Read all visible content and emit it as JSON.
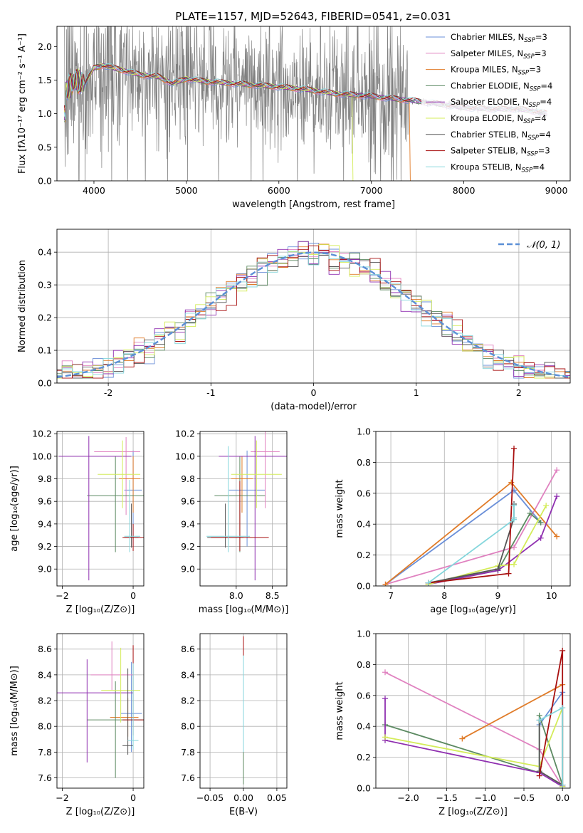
{
  "title": "PLATE=1157, MJD=52643, FIBERID=0541, z=0.031",
  "colors": {
    "Chabrier MILES": "#6a8fd8",
    "Salpeter MILES": "#e082c0",
    "Kroupa MILES": "#e07b28",
    "Chabrier ELODIE": "#5c8a62",
    "Salpeter ELODIE": "#8f2fb0",
    "Kroupa ELODIE": "#d4ec5a",
    "Chabrier STELIB": "#555555",
    "Salpeter STELIB": "#a81010",
    "Kroupa STELIB": "#84d6dc",
    "data": "#808080",
    "gauss": "#5b8fd6"
  },
  "chart_data": [
    {
      "id": "spectrum",
      "type": "line",
      "xlabel": "wavelength [Angstrom, rest frame]",
      "ylabel": "Flux [fλ10⁻¹⁷ erg cm⁻² s⁻¹ A⁻¹]",
      "xlim": [
        3600,
        9150
      ],
      "ylim": [
        0,
        2.3
      ],
      "xticks": [
        4000,
        5000,
        6000,
        7000,
        8000,
        9000
      ],
      "yticks": [
        0.0,
        0.5,
        1.0,
        1.5,
        2.0
      ],
      "grid": false,
      "legend_position": "top-right",
      "legend": [
        {
          "name": "Chabrier MILES",
          "base": "Chabrier MILES, N",
          "sub": "SSP",
          "val": "=3"
        },
        {
          "name": "Salpeter MILES",
          "base": "Salpeter MILES, N",
          "sub": "SSP",
          "val": "=3"
        },
        {
          "name": "Kroupa MILES",
          "base": "Kroupa MILES, N",
          "sub": "SSP",
          "val": "=3"
        },
        {
          "name": "Chabrier ELODIE",
          "base": "Chabrier ELODIE, N",
          "sub": "SSP",
          "val": "=4"
        },
        {
          "name": "Salpeter ELODIE",
          "base": "Salpeter ELODIE, N",
          "sub": "SSP",
          "val": "=4"
        },
        {
          "name": "Kroupa ELODIE",
          "base": "Kroupa ELODIE, N",
          "sub": "SSP",
          "val": "=4"
        },
        {
          "name": "Chabrier STELIB",
          "base": "Chabrier STELIB, N",
          "sub": "SSP",
          "val": "=4"
        },
        {
          "name": "Salpeter STELIB",
          "base": "Salpeter STELIB, N",
          "sub": "SSP",
          "val": "=3"
        },
        {
          "name": "Kroupa STELIB",
          "base": "Kroupa STELIB, N",
          "sub": "SSP",
          "val": "=4"
        }
      ],
      "continuum": [
        [
          3700,
          1.35
        ],
        [
          3800,
          1.5
        ],
        [
          3900,
          1.45
        ],
        [
          4000,
          1.68
        ],
        [
          4100,
          1.72
        ],
        [
          4300,
          1.65
        ],
        [
          4500,
          1.58
        ],
        [
          4700,
          1.55
        ],
        [
          4850,
          1.45
        ],
        [
          5000,
          1.52
        ],
        [
          5200,
          1.48
        ],
        [
          5500,
          1.45
        ],
        [
          5800,
          1.42
        ],
        [
          6000,
          1.4
        ],
        [
          6300,
          1.36
        ],
        [
          6600,
          1.3
        ],
        [
          7000,
          1.26
        ],
        [
          7400,
          1.2
        ],
        [
          7700,
          1.15
        ],
        [
          8000,
          1.09
        ],
        [
          8300,
          1.07
        ],
        [
          8600,
          1.07
        ],
        [
          8900,
          1.0
        ]
      ],
      "noisy_data_range": [
        3680,
        7400
      ],
      "model_dropouts": {
        "Kroupa ELODIE": 6800,
        "Kroupa MILES": 7420
      }
    },
    {
      "id": "residuals",
      "type": "histogram",
      "xlabel": "(data-model)/error",
      "ylabel": "Normed distribution",
      "xlim": [
        -2.5,
        2.5
      ],
      "ylim": [
        0,
        0.47
      ],
      "xticks": [
        -2,
        -1,
        0,
        1,
        2
      ],
      "yticks": [
        0.0,
        0.1,
        0.2,
        0.3,
        0.4
      ],
      "grid": true,
      "legend_position": "top-right",
      "gauss_label": "𝒩(0, 1)",
      "bin_width": 0.1
    },
    {
      "id": "age_vs_Z",
      "type": "errorbar",
      "xlabel": "Z [log₁₀(Z/Z⊙)]",
      "ylabel": "age  [log₁₀(age/yr)]",
      "xlim": [
        -2.15,
        0.3
      ],
      "ylim": [
        8.85,
        10.22
      ],
      "xticks": [
        -2,
        0
      ],
      "yticks": [
        9.0,
        9.2,
        9.4,
        9.6,
        9.8,
        10.0,
        10.2
      ],
      "grid": true,
      "points": [
        {
          "name": "Chabrier MILES",
          "x": 0.0,
          "y": 9.7,
          "xerr": [
            0.25,
            0.25
          ],
          "yerr": [
            0.5,
            0.35
          ]
        },
        {
          "name": "Salpeter MILES",
          "x": -0.2,
          "y": 10.04,
          "xerr": [
            0.9,
            0.4
          ],
          "yerr": [
            0.56,
            0.13
          ]
        },
        {
          "name": "Kroupa MILES",
          "x": 0.0,
          "y": 9.8,
          "xerr": [
            0.4,
            0.2
          ],
          "yerr": [
            0.3,
            0.2
          ]
        },
        {
          "name": "Chabrier ELODIE",
          "x": -0.5,
          "y": 9.65,
          "xerr": [
            0.8,
            0.8
          ],
          "yerr": [
            0.5,
            0.35
          ]
        },
        {
          "name": "Salpeter ELODIE",
          "x": -1.25,
          "y": 10.0,
          "xerr": [
            0.85,
            1.2
          ],
          "yerr": [
            1.1,
            0.18
          ]
        },
        {
          "name": "Kroupa ELODIE",
          "x": -0.3,
          "y": 9.84,
          "xerr": [
            0.7,
            0.5
          ],
          "yerr": [
            0.3,
            0.3
          ]
        },
        {
          "name": "Chabrier STELIB",
          "x": -0.05,
          "y": 9.28,
          "xerr": [
            0.2,
            0.2
          ],
          "yerr": [
            0.09,
            0.3
          ]
        },
        {
          "name": "Salpeter STELIB",
          "x": 0.0,
          "y": 9.28,
          "xerr": [
            0.3,
            0.3
          ],
          "yerr": [
            0.12,
            0.12
          ]
        },
        {
          "name": "Kroupa STELIB",
          "x": -0.1,
          "y": 9.29,
          "xerr": [
            0.15,
            0.3
          ],
          "yerr": [
            0.14,
            0.5
          ]
        }
      ]
    },
    {
      "id": "age_vs_mass",
      "type": "errorbar",
      "xlabel": "mass [log₁₀(M/M⊙)]",
      "ylabel": "",
      "xlim": [
        7.5,
        8.7
      ],
      "ylim": [
        8.85,
        10.22
      ],
      "xticks": [
        8.0,
        8.5
      ],
      "yticks": [
        9.0,
        9.2,
        9.4,
        9.6,
        9.8,
        10.0,
        10.2
      ],
      "grid": true,
      "points": [
        {
          "name": "Chabrier MILES",
          "x": 8.15,
          "y": 9.7,
          "xerr": [
            0.25,
            0.25
          ],
          "yerr": [
            0.5,
            0.35
          ]
        },
        {
          "name": "Salpeter MILES",
          "x": 8.4,
          "y": 10.04,
          "xerr": [
            0.2,
            0.2
          ],
          "yerr": [
            0.5,
            0.18
          ]
        },
        {
          "name": "Kroupa MILES",
          "x": 8.08,
          "y": 9.8,
          "xerr": [
            0.15,
            0.15
          ],
          "yerr": [
            0.3,
            0.2
          ]
        },
        {
          "name": "Chabrier ELODIE",
          "x": 8.05,
          "y": 9.65,
          "xerr": [
            0.35,
            0.35
          ],
          "yerr": [
            0.5,
            0.35
          ]
        },
        {
          "name": "Salpeter ELODIE",
          "x": 8.26,
          "y": 10.0,
          "xerr": [
            0.5,
            0.5
          ],
          "yerr": [
            1.1,
            0.18
          ]
        },
        {
          "name": "Kroupa ELODIE",
          "x": 8.28,
          "y": 9.84,
          "xerr": [
            0.35,
            0.35
          ],
          "yerr": [
            0.3,
            0.3
          ]
        },
        {
          "name": "Chabrier STELIB",
          "x": 7.85,
          "y": 9.28,
          "xerr": [
            0.25,
            0.25
          ],
          "yerr": [
            0.09,
            0.3
          ]
        },
        {
          "name": "Salpeter STELIB",
          "x": 8.05,
          "y": 9.28,
          "xerr": [
            0.4,
            0.4
          ],
          "yerr": [
            0.12,
            0.5
          ]
        },
        {
          "name": "Kroupa STELIB",
          "x": 7.89,
          "y": 9.29,
          "xerr": [
            0.3,
            0.3
          ],
          "yerr": [
            0.14,
            0.8
          ]
        }
      ]
    },
    {
      "id": "weight_vs_age",
      "type": "line",
      "xlabel": "age  [log₁₀(age/yr)]",
      "ylabel": "mass weight",
      "xlim": [
        6.72,
        10.35
      ],
      "ylim": [
        0,
        1.0
      ],
      "xticks": [
        7,
        8,
        9,
        10
      ],
      "yticks": [
        0.0,
        0.2,
        0.4,
        0.6,
        0.8,
        1.0
      ],
      "grid": true,
      "series": [
        {
          "name": "Chabrier MILES",
          "x": [
            6.9,
            9.3,
            9.8
          ],
          "y": [
            0.01,
            0.62,
            0.41
          ]
        },
        {
          "name": "Salpeter MILES",
          "x": [
            6.9,
            9.3,
            10.1
          ],
          "y": [
            0.01,
            0.25,
            0.75
          ]
        },
        {
          "name": "Kroupa MILES",
          "x": [
            6.9,
            9.25,
            10.1
          ],
          "y": [
            0.01,
            0.67,
            0.32
          ]
        },
        {
          "name": "Chabrier ELODIE",
          "x": [
            7.7,
            9.0,
            9.6,
            9.8
          ],
          "y": [
            0.02,
            0.1,
            0.47,
            0.41
          ]
        },
        {
          "name": "Salpeter ELODIE",
          "x": [
            7.7,
            9.0,
            9.8,
            10.1
          ],
          "y": [
            0.01,
            0.1,
            0.31,
            0.58
          ]
        },
        {
          "name": "Kroupa ELODIE",
          "x": [
            7.7,
            9.0,
            9.3,
            9.9
          ],
          "y": [
            0.01,
            0.13,
            0.14,
            0.52
          ]
        },
        {
          "name": "Chabrier STELIB",
          "x": [
            7.7,
            9.0,
            9.3,
            9.3
          ],
          "y": [
            0.02,
            0.11,
            0.44,
            0.53
          ]
        },
        {
          "name": "Salpeter STELIB",
          "x": [
            7.7,
            9.2,
            9.3
          ],
          "y": [
            0.02,
            0.08,
            0.89
          ]
        },
        {
          "name": "Kroupa STELIB",
          "x": [
            7.7,
            9.3,
            9.3,
            9.3
          ],
          "y": [
            0.02,
            0.43,
            0.44,
            0.52
          ]
        }
      ]
    },
    {
      "id": "mass_vs_Z",
      "type": "errorbar",
      "xlabel": "Z [log₁₀(Z/Z⊙)]",
      "ylabel": "mass [log₁₀(M/M⊙)]",
      "xlim": [
        -2.15,
        0.3
      ],
      "ylim": [
        7.52,
        8.72
      ],
      "xticks": [
        -2,
        0
      ],
      "yticks": [
        7.6,
        7.8,
        8.0,
        8.2,
        8.4,
        8.6
      ],
      "grid": true,
      "points": [
        {
          "name": "Chabrier MILES",
          "x": -0.05,
          "y": 8.1,
          "xerr": [
            0.3,
            0.3
          ],
          "yerr": [
            0.3,
            0.4
          ]
        },
        {
          "name": "Salpeter MILES",
          "x": -0.6,
          "y": 8.4,
          "xerr": [
            0.6,
            0.6
          ],
          "yerr": [
            0.12,
            0.26
          ]
        },
        {
          "name": "Kroupa MILES",
          "x": -0.15,
          "y": 8.07,
          "xerr": [
            0.5,
            0.3
          ],
          "yerr": [
            0.15,
            0.15
          ]
        },
        {
          "name": "Chabrier ELODIE",
          "x": -0.5,
          "y": 8.05,
          "xerr": [
            0.8,
            0.8
          ],
          "yerr": [
            0.45,
            0.3
          ]
        },
        {
          "name": "Salpeter ELODIE",
          "x": -1.3,
          "y": 8.26,
          "xerr": [
            0.9,
            1.3
          ],
          "yerr": [
            0.54,
            0.26
          ]
        },
        {
          "name": "Kroupa ELODIE",
          "x": -0.35,
          "y": 8.28,
          "xerr": [
            0.55,
            0.55
          ],
          "yerr": [
            0.25,
            0.33
          ]
        },
        {
          "name": "Chabrier STELIB",
          "x": -0.15,
          "y": 7.85,
          "xerr": [
            0.15,
            0.15
          ],
          "yerr": [
            0.07,
            0.6
          ]
        },
        {
          "name": "Salpeter STELIB",
          "x": 0.0,
          "y": 8.05,
          "xerr": [
            0.3,
            0.3
          ],
          "yerr": [
            0.12,
            0.58
          ]
        },
        {
          "name": "Kroupa STELIB",
          "x": 0.0,
          "y": 7.89,
          "xerr": [
            0.15,
            0.15
          ],
          "yerr": [
            0.07,
            0.6
          ]
        }
      ]
    },
    {
      "id": "mass_vs_ebv",
      "type": "errorbar",
      "xlabel": "E(B-V)",
      "ylabel": "",
      "xlim": [
        -0.065,
        0.065
      ],
      "ylim": [
        7.52,
        8.72
      ],
      "xticks": [
        -0.05,
        0.0,
        0.05
      ],
      "yticks": [
        7.6,
        7.8,
        8.0,
        8.2,
        8.4,
        8.6
      ],
      "grid": true,
      "points": [
        {
          "name": "Salpeter ELODIE",
          "x": 0.0,
          "y": 8.2,
          "xerr": [
            0,
            0
          ],
          "yerr": [
            0.48,
            0.48
          ]
        },
        {
          "name": "Salpeter STELIB",
          "x": 0.0,
          "y": 8.4,
          "xerr": [
            0,
            0
          ],
          "yerr": [
            0.25,
            0.3
          ]
        },
        {
          "name": "Chabrier ELODIE",
          "x": 0.0,
          "y": 8.05,
          "xerr": [
            0,
            0
          ],
          "yerr": [
            0.5,
            0.5
          ]
        },
        {
          "name": "Kroupa STELIB",
          "x": 0.0,
          "y": 8.1,
          "xerr": [
            0,
            0
          ],
          "yerr": [
            0.3,
            0.45
          ]
        }
      ]
    },
    {
      "id": "weight_vs_Z",
      "type": "line",
      "xlabel": "Z [log₁₀(Z/Z⊙)]",
      "ylabel": "mass weight",
      "xlim": [
        -2.42,
        0.1
      ],
      "ylim": [
        0,
        1.0
      ],
      "xticks": [
        -2.0,
        -1.5,
        -1.0,
        -0.5,
        0.0
      ],
      "yticks": [
        0.0,
        0.2,
        0.4,
        0.6,
        0.8,
        1.0
      ],
      "grid": true,
      "series": [
        {
          "name": "Chabrier MILES",
          "x": [
            -0.3,
            0.0,
            0.0
          ],
          "y": [
            0.41,
            0.62,
            0.01
          ]
        },
        {
          "name": "Salpeter MILES",
          "x": [
            -2.3,
            -0.3,
            0.0
          ],
          "y": [
            0.75,
            0.25,
            0.01
          ]
        },
        {
          "name": "Kroupa MILES",
          "x": [
            -1.3,
            0.0
          ],
          "y": [
            0.32,
            0.67
          ]
        },
        {
          "name": "Chabrier ELODIE",
          "x": [
            -2.3,
            -0.3,
            -0.3,
            0.0
          ],
          "y": [
            0.41,
            0.1,
            0.47,
            0.02
          ]
        },
        {
          "name": "Salpeter ELODIE",
          "x": [
            -2.3,
            -2.3,
            -0.3,
            0.0
          ],
          "y": [
            0.58,
            0.31,
            0.1,
            0.01
          ]
        },
        {
          "name": "Kroupa ELODIE",
          "x": [
            -2.3,
            -0.3,
            0.0,
            0.0
          ],
          "y": [
            0.33,
            0.14,
            0.52,
            0.01
          ]
        },
        {
          "name": "Chabrier STELIB",
          "x": [
            -0.3,
            -0.3,
            0.0
          ],
          "y": [
            0.44,
            0.11,
            0.02
          ]
        },
        {
          "name": "Salpeter STELIB",
          "x": [
            -0.3,
            0.0,
            0.0
          ],
          "y": [
            0.08,
            0.89,
            0.02
          ]
        },
        {
          "name": "Kroupa STELIB",
          "x": [
            -0.3,
            0.0,
            0.0
          ],
          "y": [
            0.44,
            0.52,
            0.02
          ]
        }
      ]
    }
  ]
}
